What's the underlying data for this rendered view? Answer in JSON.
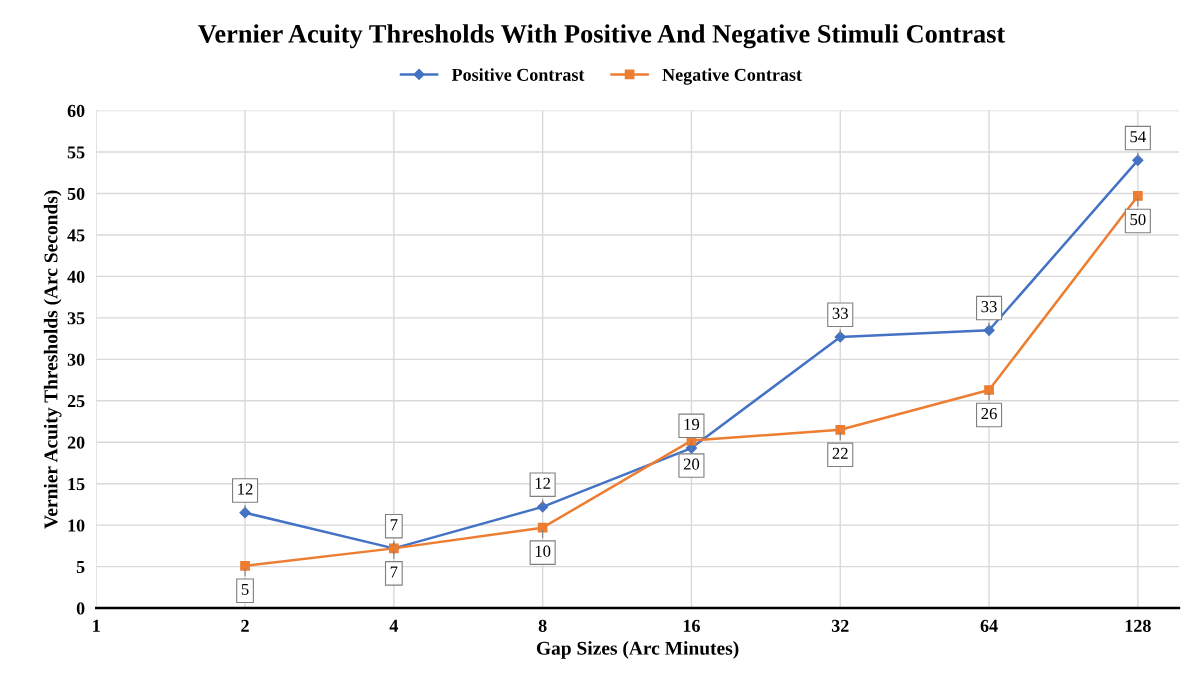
{
  "chart_data": {
    "type": "line",
    "title": "Vernier Acuity Thresholds With Positive And Negative Stimuli Contrast",
    "xlabel": "Gap Sizes (Arc Minutes)",
    "ylabel": "Vernier Acuity Thresholds (Arc Seconds)",
    "log": "x",
    "xlim": [
      1,
      155
    ],
    "xticks": [
      1,
      2,
      4,
      8,
      16,
      32,
      64,
      128
    ],
    "ylim": [
      0,
      60
    ],
    "yticks": [
      0,
      5,
      10,
      15,
      20,
      25,
      30,
      35,
      40,
      45,
      50,
      55,
      60
    ],
    "grid": true,
    "legend": "top",
    "series": [
      {
        "name": "Positive Contrast",
        "color": "#4472c4",
        "marker": "diamond",
        "x": [
          2,
          4,
          8,
          16,
          32,
          64,
          128
        ],
        "values": [
          11.5,
          7.2,
          12.2,
          19.3,
          32.7,
          33.5,
          54.0
        ],
        "value_labels": [
          "12",
          "7",
          "12",
          "19",
          "33",
          "33",
          "54"
        ]
      },
      {
        "name": "Negative Contrast",
        "color": "#ed7d31",
        "marker": "square",
        "x": [
          2,
          4,
          8,
          16,
          32,
          64,
          128
        ],
        "values": [
          5.1,
          7.2,
          9.7,
          20.2,
          21.5,
          26.3,
          49.7
        ],
        "value_labels": [
          "5",
          "7",
          "10",
          "20",
          "22",
          "26",
          "50"
        ]
      }
    ]
  }
}
